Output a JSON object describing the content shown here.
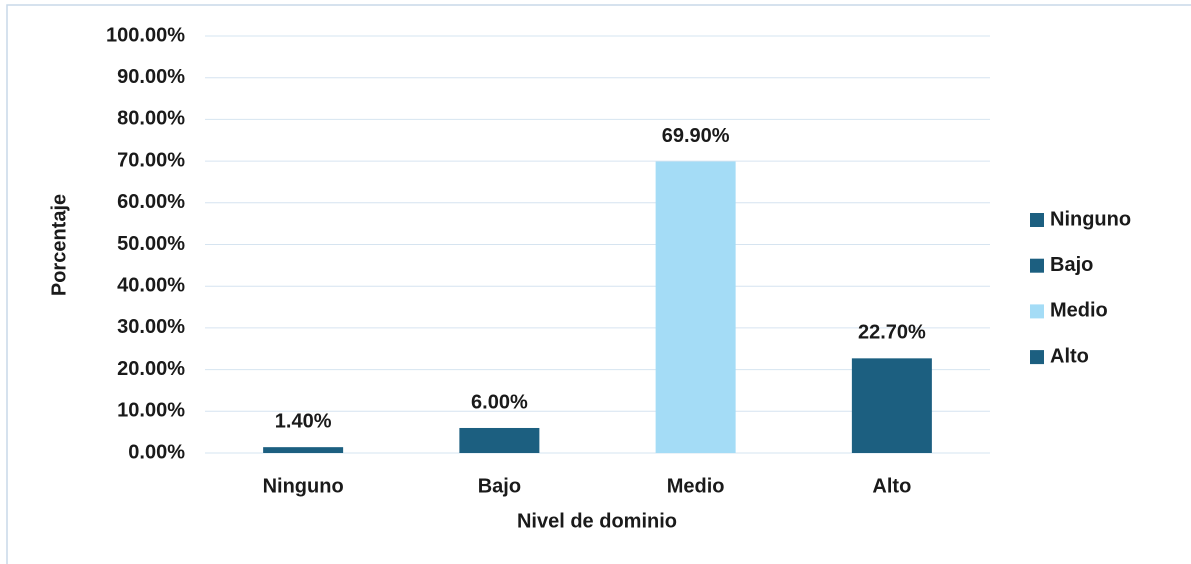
{
  "chart_data": {
    "type": "bar",
    "x_label": "Nivel de dominio",
    "y_label": "Porcentaje",
    "categories": [
      "Ninguno",
      "Bajo",
      "Medio",
      "Alto"
    ],
    "values": [
      1.4,
      6.0,
      69.9,
      22.7
    ],
    "value_labels": [
      "1.40%",
      "6.00%",
      "69.90%",
      "22.70%"
    ],
    "colors": [
      "#1c5f80",
      "#1c5f80",
      "#a4dcf6",
      "#1c5f80"
    ],
    "ylim": [
      0,
      100
    ],
    "yticks": [
      {
        "value": 0,
        "label": "0.00%"
      },
      {
        "value": 10,
        "label": "10.00%"
      },
      {
        "value": 20,
        "label": "20.00%"
      },
      {
        "value": 30,
        "label": "30.00%"
      },
      {
        "value": 40,
        "label": "40.00%"
      },
      {
        "value": 50,
        "label": "50.00%"
      },
      {
        "value": 60,
        "label": "60.00%"
      },
      {
        "value": 70,
        "label": "70.00%"
      },
      {
        "value": 80,
        "label": "80.00%"
      },
      {
        "value": 90,
        "label": "90.00%"
      },
      {
        "value": 100,
        "label": "100.00%"
      }
    ],
    "grid": true,
    "legend": "right"
  }
}
